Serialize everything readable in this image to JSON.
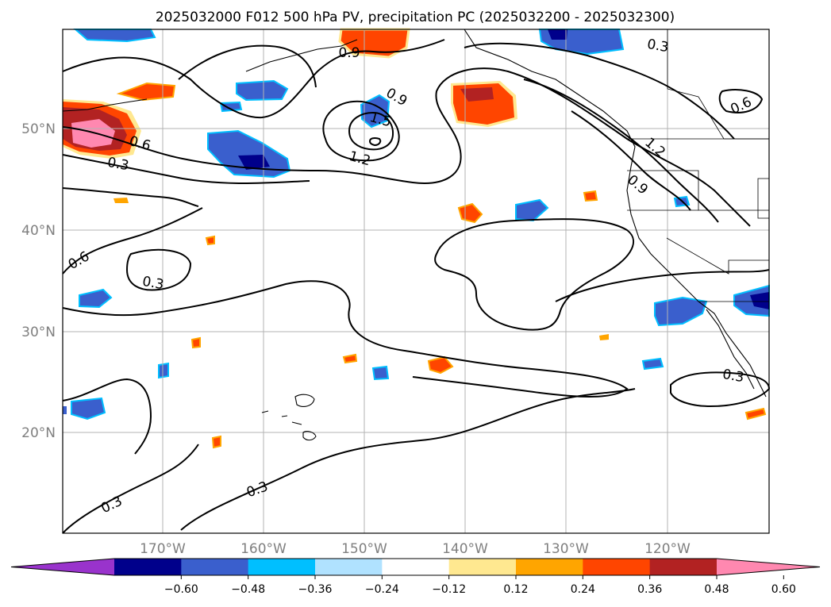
{
  "title": "2025032000 F012 500 hPa PV, precipitation PC (2025032200 - 2025032300)",
  "lat_labels": [
    "50°N",
    "40°N",
    "30°N",
    "20°N"
  ],
  "lon_labels": [
    "170°W",
    "160°W",
    "150°W",
    "140°W",
    "130°W",
    "120°W"
  ],
  "contour_labels": [
    "0.9",
    "0.9",
    "1.5",
    "1.2",
    "0.6",
    "0.3",
    "0.3",
    "0.6",
    "0.3",
    "0.6",
    "1.2",
    "0.9",
    "0.3",
    "0.3",
    "0.3"
  ],
  "colorbar": {
    "ticks": [
      "−0.60",
      "−0.48",
      "−0.36",
      "−0.24",
      "−0.12",
      "0.12",
      "0.24",
      "0.36",
      "0.48",
      "0.60"
    ],
    "colors": [
      "#9933cc",
      "#00008b",
      "#3a5fcd",
      "#00bfff",
      "#b0e2ff",
      "#ffffff",
      "#ffe890",
      "#ffa500",
      "#ff4500",
      "#b22222",
      "#ff88b0"
    ]
  }
}
